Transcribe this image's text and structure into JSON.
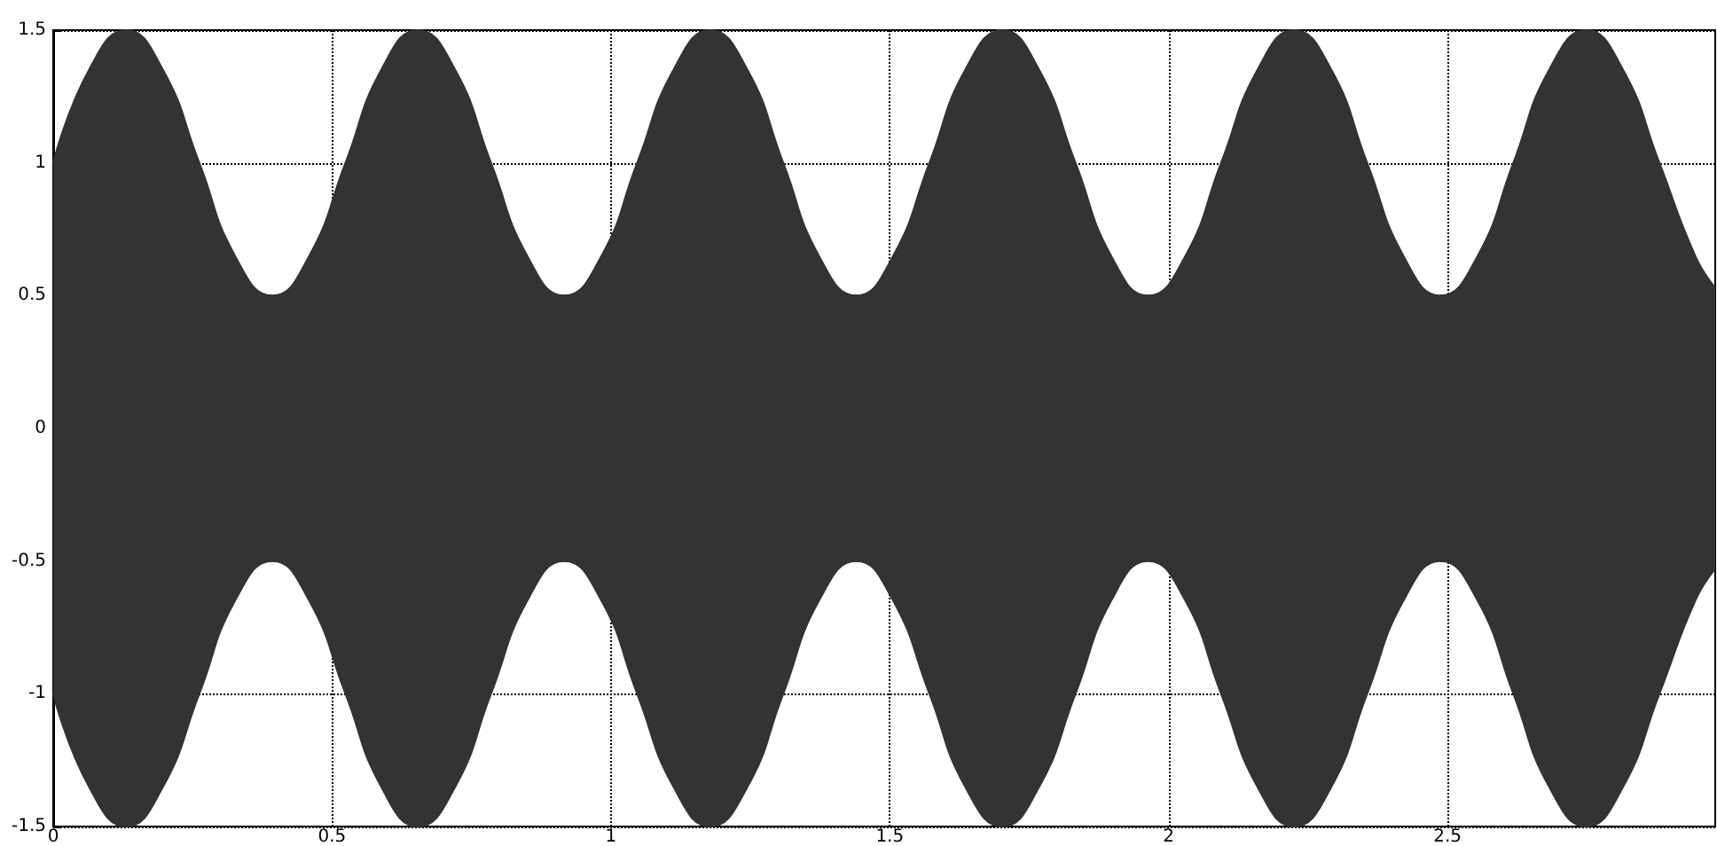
{
  "chart_data": {
    "type": "area",
    "x": [
      0,
      0.065,
      0.131,
      0.196,
      0.262,
      0.327,
      0.393,
      0.458,
      0.524,
      0.589,
      0.654,
      0.72,
      0.785,
      0.851,
      0.916,
      0.982,
      1.047,
      1.113,
      1.178,
      1.244,
      1.309,
      1.374,
      1.44,
      1.505,
      1.571,
      1.636,
      1.702,
      1.767,
      1.833,
      1.898,
      1.963,
      2.029,
      2.094,
      2.16,
      2.225,
      2.291,
      2.356,
      2.422,
      2.487,
      2.553,
      2.618,
      2.683,
      2.749,
      2.814,
      2.88,
      2.945,
      2.98
    ],
    "series": [
      {
        "color": "#333333",
        "values": [
          1,
          1.354,
          1.5,
          1.354,
          1,
          0.646,
          0.5,
          0.646,
          1,
          1.354,
          1.5,
          1.354,
          1,
          0.646,
          0.5,
          0.646,
          1,
          1.354,
          1.5,
          1.354,
          1,
          0.646,
          0.5,
          0.646,
          1,
          1.354,
          1.5,
          1.354,
          1,
          0.646,
          0.5,
          0.646,
          1,
          1.354,
          1.5,
          1.354,
          1,
          0.646,
          0.5,
          0.646,
          1,
          1.354,
          1.5,
          1.354,
          1,
          0.646,
          0.53
        ]
      },
      {
        "color": "#333333",
        "values": [
          -1,
          -1.354,
          -1.5,
          -1.354,
          -1,
          -0.646,
          -0.5,
          -0.646,
          -1,
          -1.354,
          -1.5,
          -1.354,
          -1,
          -0.646,
          -0.5,
          -0.646,
          -1,
          -1.354,
          -1.5,
          -1.354,
          -1,
          -0.646,
          -0.5,
          -0.646,
          -1,
          -1.354,
          -1.5,
          -1.354,
          -1,
          -0.646,
          -0.5,
          -0.646,
          -1,
          -1.354,
          -1.5,
          -1.354,
          -1,
          -0.646,
          -0.5,
          -0.646,
          -1,
          -1.354,
          -1.5,
          -1.354,
          -1,
          -0.646,
          -0.53
        ]
      }
    ],
    "xlim": [
      0,
      2.98
    ],
    "xticks": [
      0,
      0.5,
      1,
      1.5,
      2,
      2.5
    ],
    "ylim": [
      -1.5,
      1.5
    ],
    "yticks": [
      -1.5,
      -1,
      -0.5,
      0,
      0.5,
      1,
      1.5
    ],
    "grid": true,
    "marker": "none"
  }
}
